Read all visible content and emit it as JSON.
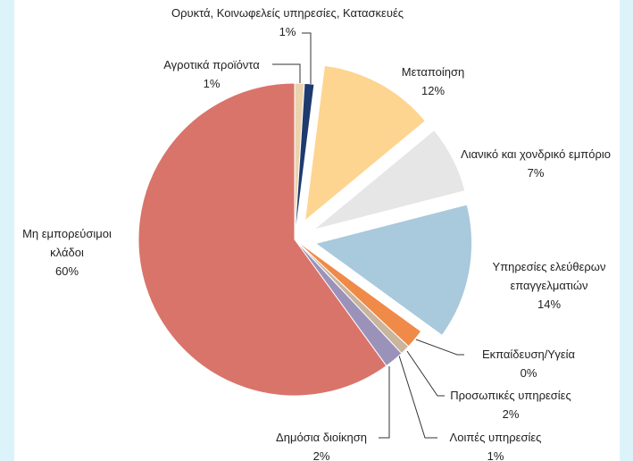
{
  "chart_data": {
    "type": "pie",
    "categories": [
      "Αγροτικά προϊόντα",
      "Ορυκτά, Κοινωφελείς υπηρεσίες, Κατασκευές",
      "Μεταποίηση",
      "Λιανικό και χονδρικό εμπόριο",
      "Υπηρεσίες ελεύθερων επαγγελματιών",
      "Εκπαίδευση/Υγεία",
      "Προσωπικές υπηρεσίες",
      "Λοιπές υπηρεσίες",
      "Δημόσια διοίκηση",
      "Μη εμπορεύσιμοι κλάδοι"
    ],
    "values": [
      1,
      1,
      12,
      7,
      14,
      0,
      2,
      1,
      2,
      60
    ],
    "value_labels": [
      "1%",
      "1%",
      "12%",
      "7%",
      "14%",
      "0%",
      "2%",
      "1%",
      "2%",
      "60%"
    ],
    "colors": [
      "#ead3ad",
      "#1f3a6e",
      "#fdd590",
      "#e6e6e6",
      "#a9c9dc",
      "#5b8a3a",
      "#f08a48",
      "#c9b59c",
      "#9b92ba",
      "#d9746b"
    ],
    "exploded": [
      2,
      3,
      4
    ]
  }
}
